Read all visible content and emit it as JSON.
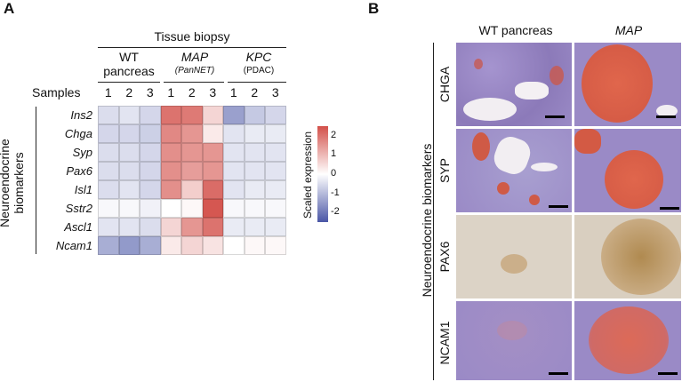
{
  "panel_a": {
    "label": "A",
    "super_header": "Tissue biopsy",
    "groups": [
      {
        "line1": "WT",
        "line2": "pancreas",
        "sub": ""
      },
      {
        "line1": "MAP",
        "line2": "",
        "sub": "(PanNET)"
      },
      {
        "line1": "KPC",
        "line2": "",
        "sub": "(PDAC)"
      }
    ],
    "samples_label": "Samples",
    "sample_numbers": [
      "1",
      "2",
      "3",
      "1",
      "2",
      "3",
      "1",
      "2",
      "3"
    ],
    "row_group_label_1": "Neuroendocrine",
    "row_group_label_2": "biomarkers",
    "colorbar_label": "Scaled expression",
    "colorbar_ticks": [
      "2",
      "1",
      "0",
      "-1",
      "-2"
    ]
  },
  "chart_data": {
    "type": "heatmap",
    "rows": [
      "Ins2",
      "Chga",
      "Syp",
      "Pax6",
      "Isl1",
      "Sstr2",
      "Ascl1",
      "Ncam1"
    ],
    "columns": [
      "WT 1",
      "WT 2",
      "WT 3",
      "MAP 1",
      "MAP 2",
      "MAP 3",
      "KPC 1",
      "KPC 2",
      "KPC 3"
    ],
    "values": [
      [
        -0.5,
        -0.4,
        -0.6,
        2.0,
        1.9,
        0.6,
        -1.4,
        -0.8,
        -0.6
      ],
      [
        -0.6,
        -0.6,
        -0.7,
        1.7,
        1.5,
        0.3,
        -0.4,
        -0.3,
        -0.3
      ],
      [
        -0.5,
        -0.5,
        -0.6,
        1.6,
        1.5,
        1.5,
        -0.4,
        -0.4,
        -0.4
      ],
      [
        -0.5,
        -0.5,
        -0.6,
        1.6,
        1.4,
        1.5,
        -0.4,
        -0.4,
        -0.4
      ],
      [
        -0.5,
        -0.4,
        -0.6,
        1.6,
        0.7,
        2.1,
        -0.4,
        -0.3,
        -0.3
      ],
      [
        -0.1,
        -0.1,
        -0.2,
        0.0,
        0.1,
        2.4,
        -0.1,
        -0.1,
        -0.1
      ],
      [
        -0.4,
        -0.4,
        -0.5,
        0.6,
        1.5,
        2.0,
        -0.3,
        -0.3,
        -0.3
      ],
      [
        -1.2,
        -1.5,
        -1.2,
        0.3,
        0.6,
        0.4,
        0.0,
        0.1,
        0.1
      ]
    ],
    "color_scale": {
      "min": -2.5,
      "max": 2.5,
      "low": "#4a56a6",
      "mid": "#ffffff",
      "high": "#d3504a"
    },
    "title": "",
    "xlabel": "Samples",
    "ylabel": "Neuroendocrine biomarkers"
  },
  "panel_b": {
    "label": "B",
    "col_headers": [
      "WT pancreas",
      "MAP"
    ],
    "row_group_label": "Neuroendocrine biomarkers",
    "rows": [
      "CHGA",
      "SYP",
      "PAX6",
      "NCAM1"
    ]
  },
  "colors": {
    "he_bg": "#9a8ac6",
    "stain_red": "#d9573e",
    "pax6_bg": "#d9cfc0",
    "pax6_brown": "#a57a3c"
  }
}
